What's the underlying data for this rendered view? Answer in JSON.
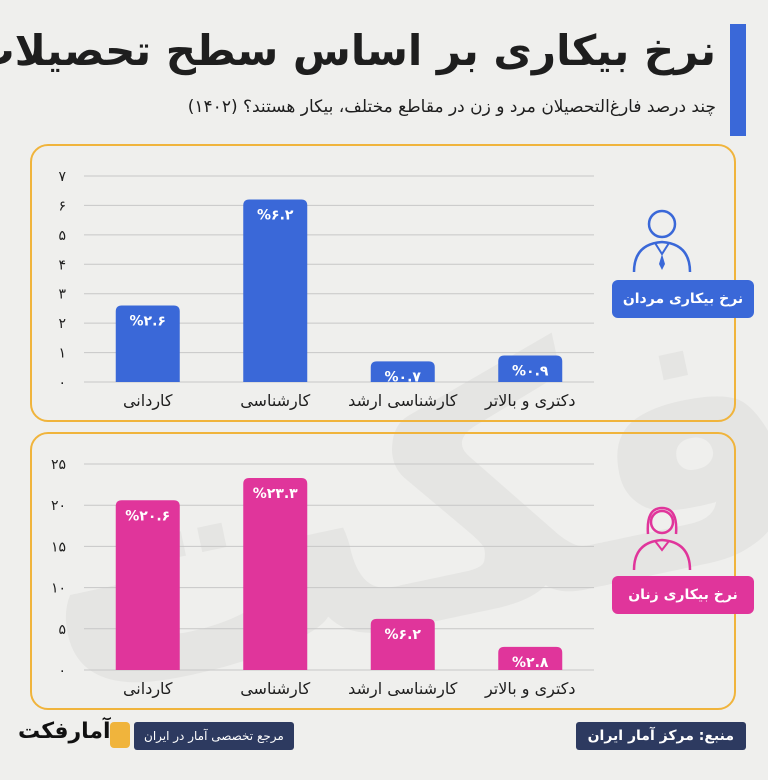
{
  "header": {
    "title": "نرخ بیکاری بر اساس سطح تحصیلات",
    "subtitle": "چند درصد فارغ‌التحصیلان مرد و زن در مقاطع مختلف، بیکار هستند؟ (۱۴۰۲)"
  },
  "colors": {
    "men": "#3a68d8",
    "women": "#e0359b",
    "panel_border": "#f0b43c",
    "footer_bg": "#2d3a60",
    "accent": "#3a68d8"
  },
  "chart_data": [
    {
      "type": "bar",
      "series_label": "نرخ بیکاری مردان",
      "color": "#3a68d8",
      "icon": "man-icon",
      "categories": [
        "کاردانی",
        "کارشناسی",
        "کارشناسی ارشد",
        "دکتری و بالاتر"
      ],
      "values": [
        2.6,
        6.2,
        0.7,
        0.9
      ],
      "data_labels": [
        "%۲.۶",
        "%۶.۲",
        "%۰.۷",
        "%۰.۹"
      ],
      "ylim": [
        0,
        7
      ],
      "yticks": [
        0,
        1,
        2,
        3,
        4,
        5,
        6,
        7
      ],
      "ytick_labels": [
        "۰",
        "۱",
        "۲",
        "۳",
        "۴",
        "۵",
        "۶",
        "۷"
      ],
      "grid": true
    },
    {
      "type": "bar",
      "series_label": "نرخ بیکاری زنان",
      "color": "#e0359b",
      "icon": "woman-icon",
      "categories": [
        "کاردانی",
        "کارشناسی",
        "کارشناسی ارشد",
        "دکتری و بالاتر"
      ],
      "values": [
        20.6,
        23.3,
        6.2,
        2.8
      ],
      "data_labels": [
        "%۲۰.۶",
        "%۲۳.۳",
        "%۶.۲",
        "%۲.۸"
      ],
      "ylim": [
        0,
        25
      ],
      "yticks": [
        0,
        5,
        10,
        15,
        20,
        25
      ],
      "ytick_labels": [
        "۰",
        "۵",
        "۱۰",
        "۱۵",
        "۲۰",
        "۲۵"
      ],
      "grid": true
    }
  ],
  "footer": {
    "source": "منبع: مرکز آمار ایران",
    "reference": "مرجع تخصصی آمار در ایران",
    "logo_text": "آمارفکت"
  }
}
